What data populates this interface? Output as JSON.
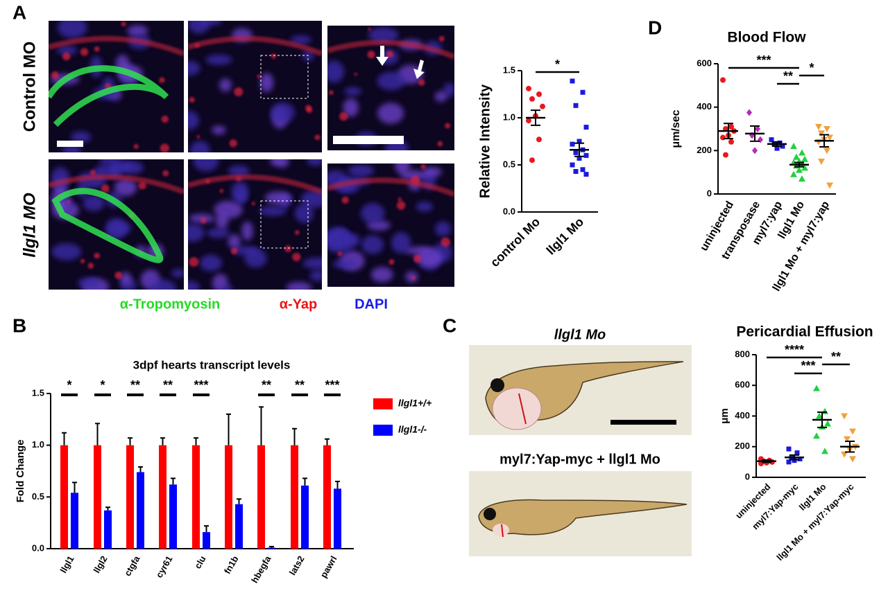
{
  "figure": {
    "panel_labels": [
      "A",
      "B",
      "C",
      "D"
    ],
    "row_labels": [
      "Control MO",
      "llgl1 MO"
    ],
    "stain_labels": [
      "α-Tropomyosin",
      "α-Yap",
      "DAPI"
    ],
    "fish_labels": [
      "llgl1 Mo",
      "myl7:Yap-myc + llgl1 Mo"
    ]
  },
  "chart_data": [
    {
      "type": "dot",
      "y_label": "Relative Intensity",
      "categories": [
        "control Mo",
        "llgl1 Mo"
      ],
      "colors": [
        "#e8191d",
        "#1a1ae0"
      ],
      "markers": [
        "circle",
        "square"
      ],
      "points": [
        [
          1.31,
          1.25,
          1.2,
          1.12,
          1.02,
          0.97,
          0.77,
          0.55
        ],
        [
          1.39,
          1.27,
          1.13,
          0.9,
          0.75,
          0.72,
          0.66,
          0.63,
          0.6,
          0.57,
          0.5,
          0.45,
          0.43,
          0.4
        ]
      ],
      "means": [
        1.0,
        0.66
      ],
      "errors": [
        0.08,
        0.07
      ],
      "ylim": [
        0,
        1.5
      ],
      "yticks": [
        {
          "value": 0,
          "label": "0.0"
        },
        {
          "value": 0.5,
          "label": "0.5"
        },
        {
          "value": 1,
          "label": "1.0"
        },
        {
          "value": 1.5,
          "label": "1.5"
        }
      ],
      "significance": [
        "*"
      ]
    },
    {
      "type": "dot",
      "title": "Blood Flow",
      "y_label": "μm/sec",
      "categories": [
        "uninjected",
        "transposase",
        "myl7:yap",
        "llgl1 Mo",
        "llgl1 Mo + myl7:yap"
      ],
      "colors": [
        "#e8191d",
        "#b52bb8",
        "#1a1ae0",
        "#22d040",
        "#f0a040"
      ],
      "markers": [
        "circle",
        "diamond",
        "square",
        "triangle",
        "triangle-down"
      ],
      "points": [
        [
          525,
          310,
          300,
          290,
          270,
          260,
          240,
          180
        ],
        [
          375,
          300,
          270,
          250,
          200
        ],
        [
          250,
          235,
          230,
          220,
          210
        ],
        [
          220,
          190,
          170,
          160,
          150,
          145,
          140,
          130,
          120,
          110,
          90,
          70
        ],
        [
          310,
          300,
          280,
          260,
          250,
          240,
          200,
          150,
          40
        ]
      ],
      "means": [
        290,
        278,
        230,
        135,
        245
      ],
      "errors": [
        35,
        35,
        10,
        10,
        28
      ],
      "ylim": [
        0,
        600
      ],
      "yticks": [
        0,
        200,
        400,
        600
      ],
      "significance": [
        "***",
        "**",
        "*"
      ]
    },
    {
      "type": "bar",
      "title": "3dpf hearts transcript levels",
      "y_label": "Fold Change",
      "categories": [
        "llgl1",
        "llgl2",
        "ctgfa",
        "cyr61",
        "clu",
        "fn1b",
        "hbegfa",
        "lats2",
        "pawrl"
      ],
      "series": [
        {
          "name": "llgl1+/+",
          "color": "#ff0000",
          "values": [
            1,
            1,
            1,
            1,
            1,
            1,
            1,
            1,
            1
          ],
          "errors": [
            0.12,
            0.21,
            0.07,
            0.07,
            0.07,
            0.3,
            0.37,
            0.16,
            0.06
          ]
        },
        {
          "name": "llgl1-/-",
          "color": "#0000ff",
          "values": [
            0.54,
            0.37,
            0.74,
            0.62,
            0.16,
            0.43,
            0.01,
            0.61,
            0.58
          ],
          "errors": [
            0.1,
            0.03,
            0.05,
            0.06,
            0.06,
            0.05,
            0.01,
            0.07,
            0.07
          ]
        }
      ],
      "ylim": [
        0,
        1.5
      ],
      "yticks": [
        {
          "value": 0,
          "label": "0.0"
        },
        {
          "value": 0.5,
          "label": "0.5"
        },
        {
          "value": 1,
          "label": "1.0"
        },
        {
          "value": 1.5,
          "label": "1.5"
        }
      ],
      "significance": [
        "*",
        "*",
        "**",
        "**",
        "***",
        null,
        "**",
        "**",
        "***"
      ]
    },
    {
      "type": "dot",
      "title": "Pericardial Effusion",
      "y_label": "μm",
      "categories": [
        "uninjected",
        "myl7:Yap-myc",
        "llgl1 Mo",
        "llgl1 Mo + myl7:Yap-myc"
      ],
      "colors": [
        "#e8191d",
        "#1a1ae0",
        "#22d040",
        "#f0a040"
      ],
      "markers": [
        "circle",
        "square",
        "triangle",
        "triangle-down"
      ],
      "points": [
        [
          120,
          110,
          105,
          100,
          95,
          90
        ],
        [
          185,
          160,
          130,
          120,
          110,
          100
        ],
        [
          580,
          430,
          400,
          350,
          330,
          270,
          170
        ],
        [
          400,
          300,
          250,
          200,
          180,
          150,
          120
        ]
      ],
      "means": [
        105,
        130,
        375,
        200
      ],
      "errors": [
        7,
        15,
        50,
        35
      ],
      "ylim": [
        0,
        800
      ],
      "yticks": [
        0,
        200,
        400,
        600,
        800
      ],
      "significance": [
        "****",
        "***",
        "**"
      ]
    }
  ]
}
